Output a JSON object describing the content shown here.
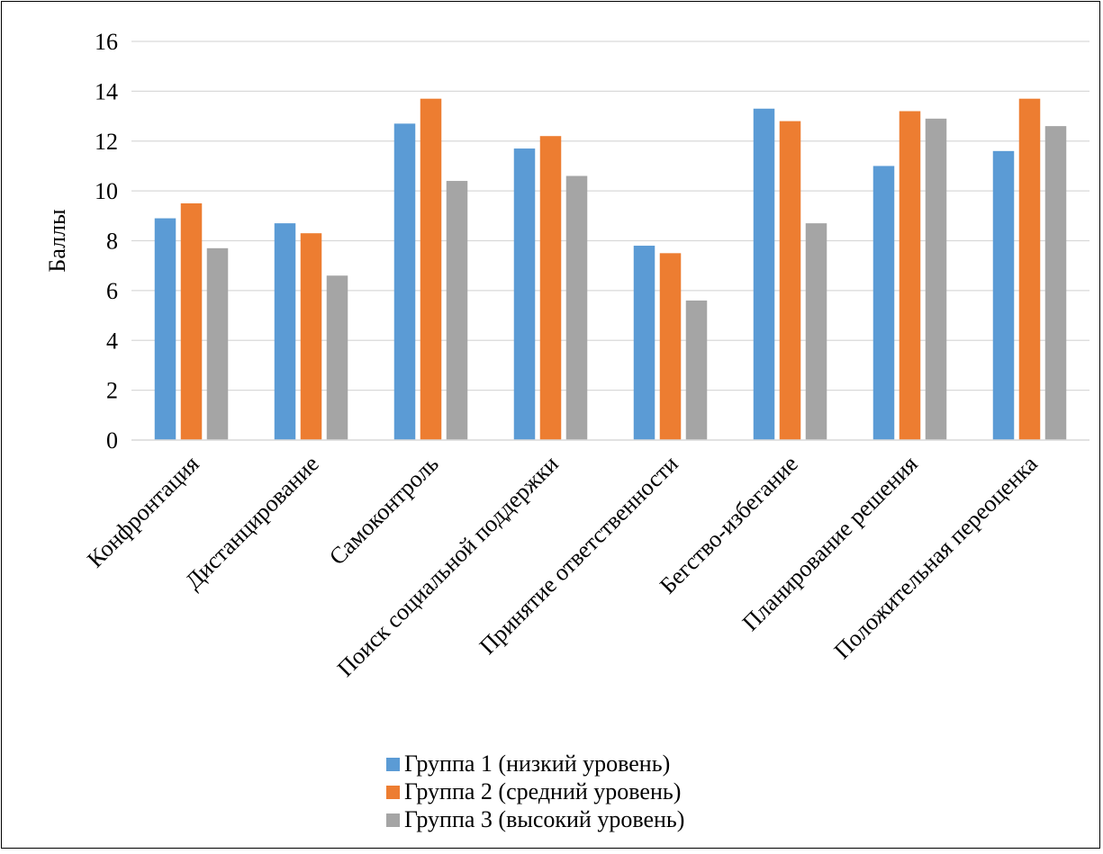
{
  "chart_data": {
    "type": "bar",
    "title": "",
    "xlabel": "",
    "ylabel": "Баллы",
    "ylim": [
      0,
      16
    ],
    "yticks": [
      0,
      2,
      4,
      6,
      8,
      10,
      12,
      14,
      16
    ],
    "grid": true,
    "legend_position": "bottom",
    "categories": [
      "Конфронтация",
      "Дистанцирование",
      "Самоконтроль",
      "Поиск социальной поддержки",
      "Принятие ответственности",
      "Бегство-избегание",
      "Планирование решения",
      "Положительная переоценка"
    ],
    "series": [
      {
        "name": "Группа 1 (низкий уровень)",
        "color": "#5B9BD5",
        "values": [
          8.9,
          8.7,
          12.7,
          11.7,
          7.8,
          13.3,
          11.0,
          11.6
        ]
      },
      {
        "name": "Группа 2 (средний уровень)",
        "color": "#ED7D31",
        "values": [
          9.5,
          8.3,
          13.7,
          12.2,
          7.5,
          12.8,
          13.2,
          13.7
        ]
      },
      {
        "name": "Группа 3 (высокий уровень)",
        "color": "#A5A5A5",
        "values": [
          7.7,
          6.6,
          10.4,
          10.6,
          5.6,
          8.7,
          12.9,
          12.6
        ]
      }
    ]
  }
}
